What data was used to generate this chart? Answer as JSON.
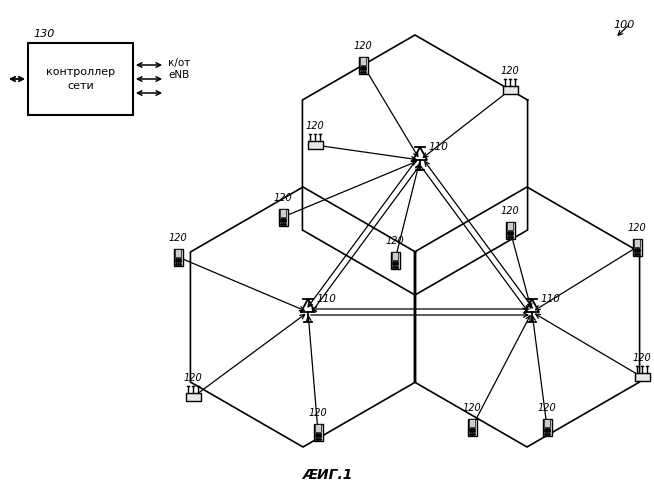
{
  "title": "ӔИГ.1",
  "label_100": "100",
  "label_130": "130",
  "label_110": "110",
  "label_120": "120",
  "controller_text": "контроллер\nсети",
  "arrow_label": "к/от\neNB",
  "bg_color": "#ffffff",
  "fig_width": 6.54,
  "fig_height": 5.0,
  "dpi": 100
}
